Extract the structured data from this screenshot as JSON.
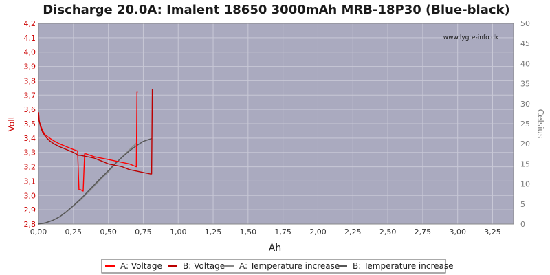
{
  "chart_data": {
    "type": "line",
    "title": "Discharge 20.0A: Imalent 18650 3000mAh MRB-18P30 (Blue-black)",
    "watermark": "www.lygte-info.dk",
    "xlabel": "Ah",
    "ylabel_left": "Volt",
    "ylabel_right": "Celsius",
    "xlim": [
      0,
      3.4
    ],
    "ylim_left": [
      2.8,
      4.2
    ],
    "ylim_right": [
      0,
      50
    ],
    "x_ticks": [
      "0,00",
      "0,25",
      "0,50",
      "0,75",
      "1,00",
      "1,25",
      "1,50",
      "1,75",
      "2,00",
      "2,25",
      "2,50",
      "2,75",
      "3,00",
      "3,25"
    ],
    "y_left_ticks": [
      "2,8",
      "2,9",
      "3,0",
      "3,1",
      "3,2",
      "3,3",
      "3,4",
      "3,5",
      "3,6",
      "3,7",
      "3,8",
      "3,9",
      "4,0",
      "4,1",
      "4,2"
    ],
    "y_right_ticks": [
      "0",
      "5",
      "10",
      "15",
      "20",
      "25",
      "30",
      "35",
      "40",
      "45",
      "50"
    ],
    "grid": true,
    "legend_position": "bottom",
    "colors": {
      "plot_bg": "#aaaabf",
      "grid": "#c8c8d6",
      "left_axis_text": "#cc0000",
      "right_axis_text": "#777777",
      "voltage_a": "#ff0000",
      "voltage_b": "#bb0000",
      "temp_a": "#888888",
      "temp_b": "#555555"
    },
    "series": [
      {
        "name": "A: Voltage",
        "axis": "left",
        "color": "#ff0000",
        "x": [
          0.0,
          0.005,
          0.015,
          0.03,
          0.05,
          0.08,
          0.11,
          0.15,
          0.2,
          0.25,
          0.28,
          0.29,
          0.3,
          0.32,
          0.33,
          0.34,
          0.4,
          0.45,
          0.5,
          0.55,
          0.6,
          0.65,
          0.7,
          0.705,
          0.71
        ],
        "y": [
          3.58,
          3.52,
          3.49,
          3.45,
          3.42,
          3.4,
          3.38,
          3.36,
          3.34,
          3.32,
          3.31,
          3.04,
          3.04,
          3.03,
          3.29,
          3.29,
          3.27,
          3.26,
          3.25,
          3.24,
          3.23,
          3.22,
          3.2,
          3.72,
          3.72
        ]
      },
      {
        "name": "B: Voltage",
        "axis": "left",
        "color": "#bb0000",
        "x": [
          0.0,
          0.005,
          0.015,
          0.03,
          0.05,
          0.08,
          0.11,
          0.15,
          0.2,
          0.25,
          0.27,
          0.28,
          0.29,
          0.3,
          0.4,
          0.45,
          0.5,
          0.55,
          0.6,
          0.65,
          0.7,
          0.75,
          0.8,
          0.81,
          0.815,
          0.82
        ],
        "y": [
          3.58,
          3.52,
          3.48,
          3.44,
          3.41,
          3.38,
          3.36,
          3.34,
          3.32,
          3.3,
          3.29,
          3.28,
          3.28,
          3.28,
          3.26,
          3.24,
          3.22,
          3.21,
          3.2,
          3.18,
          3.17,
          3.16,
          3.15,
          3.15,
          3.74,
          3.74
        ]
      },
      {
        "name": "A: Temperature increase",
        "axis": "right",
        "color": "#888888",
        "x": [
          0.0,
          0.05,
          0.1,
          0.15,
          0.2,
          0.25,
          0.3,
          0.35,
          0.4,
          0.45,
          0.5,
          0.55,
          0.6,
          0.65,
          0.7
        ],
        "y": [
          0.0,
          0.3,
          0.9,
          1.8,
          3.0,
          4.5,
          6.0,
          7.7,
          9.5,
          11.3,
          13.0,
          15.0,
          16.8,
          18.5,
          20.1
        ]
      },
      {
        "name": "B: Temperature increase",
        "axis": "right",
        "color": "#555555",
        "x": [
          0.0,
          0.05,
          0.1,
          0.15,
          0.2,
          0.25,
          0.3,
          0.35,
          0.4,
          0.45,
          0.5,
          0.55,
          0.6,
          0.65,
          0.7,
          0.75,
          0.81
        ],
        "y": [
          0.0,
          0.3,
          0.9,
          1.8,
          3.1,
          4.6,
          6.2,
          8.0,
          9.8,
          11.6,
          13.3,
          15.1,
          16.7,
          18.2,
          19.5,
          20.6,
          21.3
        ]
      }
    ]
  }
}
